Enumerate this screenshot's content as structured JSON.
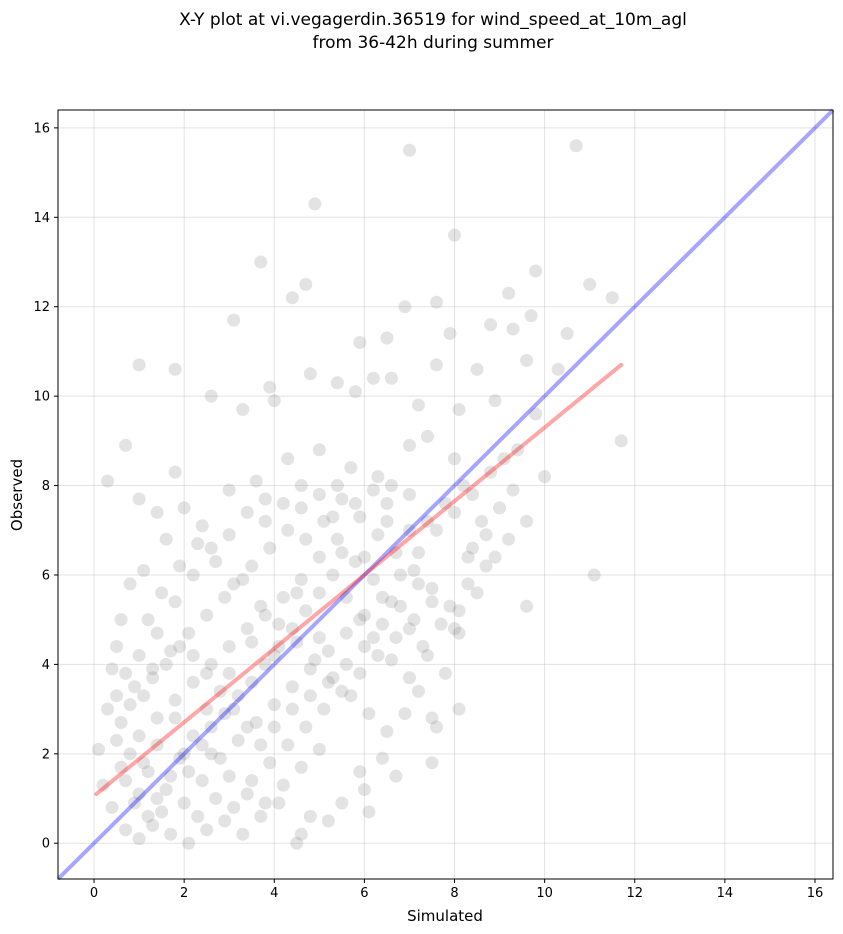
{
  "chart_data": {
    "type": "scatter",
    "title_line1": "X-Y plot at vi.vegagerdin.36519 for wind_speed_at_10m_agl",
    "title_line2": "from 36-42h during summer",
    "xlabel": "Simulated",
    "ylabel": "Observed",
    "xlim": [
      -0.8,
      16.4
    ],
    "ylim": [
      -0.8,
      16.4
    ],
    "xticks": [
      0,
      2,
      4,
      6,
      8,
      10,
      12,
      14,
      16
    ],
    "yticks": [
      0,
      2,
      4,
      6,
      8,
      10,
      12,
      14,
      16
    ],
    "grid": true,
    "point_color": "#808080",
    "point_opacity": 0.22,
    "identity_line": {
      "color": "#0000ff",
      "opacity": 0.35,
      "from": [
        -0.8,
        -0.8
      ],
      "to": [
        16.4,
        16.4
      ]
    },
    "fit_line": {
      "color": "#ff0000",
      "opacity": 0.35,
      "x": [
        0.05,
        11.7
      ],
      "y": [
        1.1,
        10.7
      ]
    },
    "points": [
      [
        0.3,
        8.1
      ],
      [
        0.7,
        8.9
      ],
      [
        1.0,
        7.7
      ],
      [
        1.0,
        10.7
      ],
      [
        1.8,
        10.6
      ],
      [
        1.8,
        8.3
      ],
      [
        2.6,
        10.0
      ],
      [
        3.1,
        11.7
      ],
      [
        3.7,
        13.0
      ],
      [
        4.4,
        12.2
      ],
      [
        4.7,
        12.5
      ],
      [
        4.9,
        14.3
      ],
      [
        7.0,
        15.5
      ],
      [
        10.7,
        15.6
      ],
      [
        8.0,
        13.6
      ],
      [
        9.8,
        12.8
      ],
      [
        11.0,
        12.5
      ],
      [
        11.5,
        12.2
      ],
      [
        9.2,
        12.3
      ],
      [
        7.6,
        12.1
      ],
      [
        6.9,
        12.0
      ],
      [
        7.9,
        11.4
      ],
      [
        8.8,
        11.6
      ],
      [
        9.7,
        11.8
      ],
      [
        10.5,
        11.4
      ],
      [
        9.3,
        11.5
      ],
      [
        5.9,
        11.2
      ],
      [
        6.5,
        11.3
      ],
      [
        8.5,
        10.6
      ],
      [
        9.6,
        10.8
      ],
      [
        10.3,
        10.6
      ],
      [
        7.6,
        10.7
      ],
      [
        6.6,
        10.4
      ],
      [
        5.8,
        10.1
      ],
      [
        3.9,
        10.2
      ],
      [
        4.0,
        9.9
      ],
      [
        4.8,
        10.5
      ],
      [
        5.4,
        10.3
      ],
      [
        6.2,
        10.4
      ],
      [
        7.2,
        9.8
      ],
      [
        8.1,
        9.7
      ],
      [
        8.9,
        9.9
      ],
      [
        9.8,
        9.6
      ],
      [
        10.0,
        8.2
      ],
      [
        9.4,
        8.8
      ],
      [
        11.7,
        9.0
      ],
      [
        11.1,
        6.0
      ],
      [
        9.6,
        5.3
      ],
      [
        9.2,
        6.8
      ],
      [
        9.6,
        7.2
      ],
      [
        8.7,
        6.2
      ],
      [
        8.3,
        6.4
      ],
      [
        8.0,
        4.8
      ],
      [
        8.1,
        3.0
      ],
      [
        7.5,
        2.8
      ],
      [
        7.6,
        2.6
      ],
      [
        7.5,
        1.8
      ],
      [
        6.1,
        0.7
      ],
      [
        5.9,
        1.6
      ],
      [
        6.7,
        1.5
      ],
      [
        4.8,
        0.6
      ],
      [
        4.5,
        0.0
      ],
      [
        4.6,
        0.2
      ],
      [
        3.3,
        9.7
      ],
      [
        2.0,
        7.5
      ],
      [
        1.4,
        7.4
      ],
      [
        0.6,
        5.0
      ],
      [
        0.2,
        1.3
      ],
      [
        0.1,
        2.1
      ],
      [
        3.6,
        8.1
      ],
      [
        4.3,
        8.6
      ],
      [
        5.0,
        8.8
      ],
      [
        5.7,
        8.4
      ],
      [
        6.3,
        8.2
      ],
      [
        7.0,
        8.9
      ],
      [
        7.4,
        9.1
      ],
      [
        6.5,
        7.6
      ],
      [
        5.3,
        7.3
      ],
      [
        4.6,
        7.5
      ],
      [
        3.8,
        7.2
      ],
      [
        3.0,
        7.9
      ],
      [
        2.4,
        7.1
      ],
      [
        1.6,
        6.8
      ],
      [
        1.1,
        6.1
      ],
      [
        0.8,
        5.8
      ],
      [
        0.5,
        4.4
      ],
      [
        0.4,
        3.9
      ],
      [
        0.3,
        3.0
      ],
      [
        0.5,
        2.3
      ],
      [
        0.6,
        1.7
      ],
      [
        0.4,
        0.8
      ],
      [
        0.7,
        0.3
      ],
      [
        1.0,
        0.1
      ],
      [
        1.3,
        0.4
      ],
      [
        1.7,
        0.2
      ],
      [
        2.1,
        0.0
      ],
      [
        2.5,
        0.3
      ],
      [
        2.9,
        0.5
      ],
      [
        3.3,
        0.2
      ],
      [
        3.7,
        0.6
      ],
      [
        4.1,
        0.9
      ],
      [
        5.2,
        0.5
      ],
      [
        5.5,
        0.9
      ],
      [
        6.0,
        1.2
      ],
      [
        6.4,
        1.9
      ],
      [
        6.9,
        2.9
      ],
      [
        7.2,
        3.4
      ],
      [
        7.8,
        3.8
      ],
      [
        8.1,
        4.7
      ],
      [
        8.5,
        5.6
      ],
      [
        8.9,
        6.4
      ],
      [
        9.3,
        7.9
      ],
      [
        7.4,
        4.2
      ],
      [
        7.0,
        4.8
      ],
      [
        6.6,
        5.4
      ],
      [
        6.2,
        5.9
      ],
      [
        5.8,
        6.3
      ],
      [
        5.4,
        6.8
      ],
      [
        5.0,
        6.4
      ],
      [
        4.6,
        5.9
      ],
      [
        4.2,
        5.5
      ],
      [
        3.8,
        5.1
      ],
      [
        3.4,
        4.8
      ],
      [
        3.0,
        4.4
      ],
      [
        2.6,
        4.0
      ],
      [
        2.2,
        3.6
      ],
      [
        1.8,
        3.2
      ],
      [
        1.4,
        2.8
      ],
      [
        1.0,
        2.4
      ],
      [
        0.8,
        2.0
      ],
      [
        1.2,
        1.6
      ],
      [
        1.6,
        1.2
      ],
      [
        2.0,
        0.9
      ],
      [
        2.4,
        1.4
      ],
      [
        2.8,
        1.9
      ],
      [
        3.2,
        2.3
      ],
      [
        3.6,
        2.7
      ],
      [
        4.0,
        3.1
      ],
      [
        4.4,
        3.5
      ],
      [
        4.8,
        3.9
      ],
      [
        5.2,
        4.3
      ],
      [
        5.6,
        4.7
      ],
      [
        6.0,
        5.1
      ],
      [
        6.4,
        5.5
      ],
      [
        6.8,
        6.0
      ],
      [
        7.2,
        6.5
      ],
      [
        7.6,
        7.0
      ],
      [
        8.0,
        7.4
      ],
      [
        8.4,
        7.8
      ],
      [
        8.8,
        8.3
      ],
      [
        1.2,
        5.0
      ],
      [
        1.5,
        5.6
      ],
      [
        1.9,
        6.2
      ],
      [
        2.3,
        6.7
      ],
      [
        2.7,
        6.3
      ],
      [
        3.1,
        5.8
      ],
      [
        3.5,
        6.2
      ],
      [
        3.9,
        6.6
      ],
      [
        4.3,
        7.0
      ],
      [
        4.7,
        6.8
      ],
      [
        5.1,
        7.2
      ],
      [
        5.5,
        7.7
      ],
      [
        5.9,
        7.3
      ],
      [
        6.3,
        6.9
      ],
      [
        6.7,
        6.5
      ],
      [
        7.1,
        6.1
      ],
      [
        7.5,
        5.7
      ],
      [
        7.9,
        5.3
      ],
      [
        8.3,
        5.8
      ],
      [
        8.7,
        6.9
      ],
      [
        0.9,
        3.5
      ],
      [
        1.3,
        3.9
      ],
      [
        1.7,
        4.3
      ],
      [
        2.1,
        4.7
      ],
      [
        2.5,
        5.1
      ],
      [
        2.9,
        5.5
      ],
      [
        3.3,
        5.9
      ],
      [
        3.7,
        5.3
      ],
      [
        4.1,
        4.9
      ],
      [
        4.5,
        4.5
      ],
      [
        4.9,
        4.1
      ],
      [
        5.3,
        3.7
      ],
      [
        5.7,
        3.3
      ],
      [
        6.1,
        2.9
      ],
      [
        6.5,
        2.5
      ],
      [
        5.0,
        2.1
      ],
      [
        4.6,
        1.7
      ],
      [
        4.2,
        1.3
      ],
      [
        3.8,
        0.9
      ],
      [
        3.4,
        1.1
      ],
      [
        3.0,
        1.5
      ],
      [
        2.6,
        2.0
      ],
      [
        2.2,
        2.4
      ],
      [
        1.8,
        2.8
      ],
      [
        1.4,
        2.2
      ],
      [
        1.1,
        1.8
      ],
      [
        0.7,
        1.4
      ],
      [
        0.9,
        0.9
      ],
      [
        1.5,
        0.7
      ],
      [
        2.3,
        0.6
      ],
      [
        2.7,
        1.0
      ],
      [
        3.1,
        0.8
      ],
      [
        3.5,
        1.4
      ],
      [
        3.9,
        1.8
      ],
      [
        4.3,
        2.2
      ],
      [
        4.7,
        2.6
      ],
      [
        5.1,
        3.0
      ],
      [
        5.5,
        3.4
      ],
      [
        5.9,
        3.8
      ],
      [
        6.3,
        4.2
      ],
      [
        6.7,
        4.6
      ],
      [
        7.1,
        5.0
      ],
      [
        7.5,
        5.4
      ],
      [
        0.6,
        2.7
      ],
      [
        0.8,
        3.1
      ],
      [
        1.1,
        3.3
      ],
      [
        1.3,
        3.7
      ],
      [
        1.6,
        4.0
      ],
      [
        1.9,
        4.4
      ],
      [
        2.2,
        4.2
      ],
      [
        2.5,
        3.8
      ],
      [
        2.8,
        3.4
      ],
      [
        3.1,
        3.0
      ],
      [
        3.4,
        2.6
      ],
      [
        3.7,
        2.2
      ],
      [
        4.0,
        2.6
      ],
      [
        4.4,
        3.0
      ],
      [
        4.8,
        3.3
      ],
      [
        5.2,
        3.6
      ],
      [
        5.6,
        4.0
      ],
      [
        6.0,
        4.4
      ],
      [
        6.4,
        4.9
      ],
      [
        6.8,
        5.3
      ],
      [
        7.2,
        5.8
      ],
      [
        1.0,
        1.1
      ],
      [
        1.2,
        0.6
      ],
      [
        1.4,
        1.0
      ],
      [
        1.7,
        1.5
      ],
      [
        1.9,
        1.9
      ],
      [
        2.1,
        1.6
      ],
      [
        2.4,
        2.2
      ],
      [
        2.6,
        2.6
      ],
      [
        2.9,
        2.9
      ],
      [
        3.2,
        3.3
      ],
      [
        3.5,
        3.6
      ],
      [
        3.8,
        4.0
      ],
      [
        4.1,
        4.4
      ],
      [
        4.4,
        4.8
      ],
      [
        4.7,
        5.2
      ],
      [
        5.0,
        5.6
      ],
      [
        5.3,
        6.0
      ],
      [
        5.6,
        5.5
      ],
      [
        5.9,
        5.0
      ],
      [
        6.2,
        4.6
      ],
      [
        6.6,
        4.1
      ],
      [
        7.0,
        3.7
      ],
      [
        7.3,
        4.4
      ],
      [
        7.7,
        4.9
      ],
      [
        8.1,
        5.2
      ],
      [
        8.4,
        6.6
      ],
      [
        8.6,
        7.2
      ],
      [
        9.0,
        7.5
      ],
      [
        9.1,
        8.6
      ],
      [
        8.2,
        8.0
      ],
      [
        7.8,
        7.6
      ],
      [
        7.4,
        7.2
      ],
      [
        7.0,
        7.8
      ],
      [
        6.6,
        8.0
      ],
      [
        6.2,
        7.9
      ],
      [
        5.8,
        7.6
      ],
      [
        5.4,
        8.0
      ],
      [
        5.0,
        7.8
      ],
      [
        4.6,
        8.0
      ],
      [
        4.2,
        7.6
      ],
      [
        3.8,
        7.7
      ],
      [
        3.4,
        7.4
      ],
      [
        3.0,
        6.9
      ],
      [
        2.6,
        6.6
      ],
      [
        2.2,
        6.0
      ],
      [
        1.8,
        5.4
      ],
      [
        1.4,
        4.7
      ],
      [
        1.0,
        4.2
      ],
      [
        0.7,
        3.8
      ],
      [
        0.5,
        3.3
      ],
      [
        2.0,
        2.0
      ],
      [
        3.0,
        3.8
      ],
      [
        4.0,
        4.2
      ],
      [
        5.0,
        4.6
      ],
      [
        6.0,
        6.4
      ],
      [
        7.0,
        7.0
      ],
      [
        8.0,
        8.6
      ],
      [
        2.5,
        3.0
      ],
      [
        3.5,
        4.5
      ],
      [
        4.5,
        5.6
      ],
      [
        5.5,
        6.5
      ],
      [
        6.5,
        7.2
      ]
    ]
  }
}
